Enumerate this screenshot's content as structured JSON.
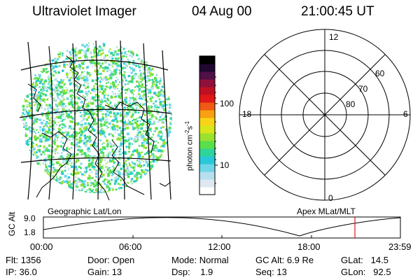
{
  "header": {
    "instrument": "Ultraviolet Imager",
    "date": "04 Aug 00",
    "time": "21:00:45 UT"
  },
  "image_panel": {
    "name": "uv-image",
    "colorbar": {
      "units_label": "photon cm",
      "units_exp1": "-2",
      "units_mid": "s",
      "units_exp2": "-1",
      "ticks": [
        "100",
        "10"
      ]
    }
  },
  "polar_plot": {
    "clock_labels": [
      "12",
      "18",
      "6",
      "0"
    ],
    "latitude_labels": [
      "60",
      "70",
      "80"
    ]
  },
  "timeline": {
    "left_label": "Geographic Lat/Lon",
    "right_label": "Apex MLat/MLT",
    "y_axis_label": "GC Alt",
    "y_ticks": [
      "9.0",
      "1.8"
    ],
    "x_ticks": [
      "00:00",
      "06:00",
      "12:00",
      "18:00",
      "23:59"
    ],
    "marker_time": "21:00"
  },
  "info": {
    "flt_label": "Flt:",
    "flt_value": "1356",
    "ip_label": "IP:",
    "ip_value": "36.0",
    "door_label": "Door:",
    "door_value": "Open",
    "gain_label": "Gain:",
    "gain_value": "13",
    "mode_label": "Mode:",
    "mode_value": "Normal",
    "dsp_label": "Dsp:",
    "dsp_value": "1.9",
    "gcalt_label": "GC Alt:",
    "gcalt_value": "6.9 Re",
    "seq_label": "Seq:",
    "seq_value": "13",
    "glat_label": "GLat:",
    "glat_value": "14.5",
    "glon_label": "GLon:",
    "glon_value": "92.5"
  },
  "colors": {
    "colorbar": [
      "#ffffff",
      "#dfe8f0",
      "#b6e0ee",
      "#6fd6e8",
      "#28c8d8",
      "#2ed49a",
      "#58df4a",
      "#9ae22e",
      "#d8e61c",
      "#f8d418",
      "#f8a012",
      "#f05a14",
      "#e01818",
      "#c01020",
      "#90103c",
      "#501048",
      "#200830",
      "#000000"
    ],
    "marker": "#e01818"
  }
}
